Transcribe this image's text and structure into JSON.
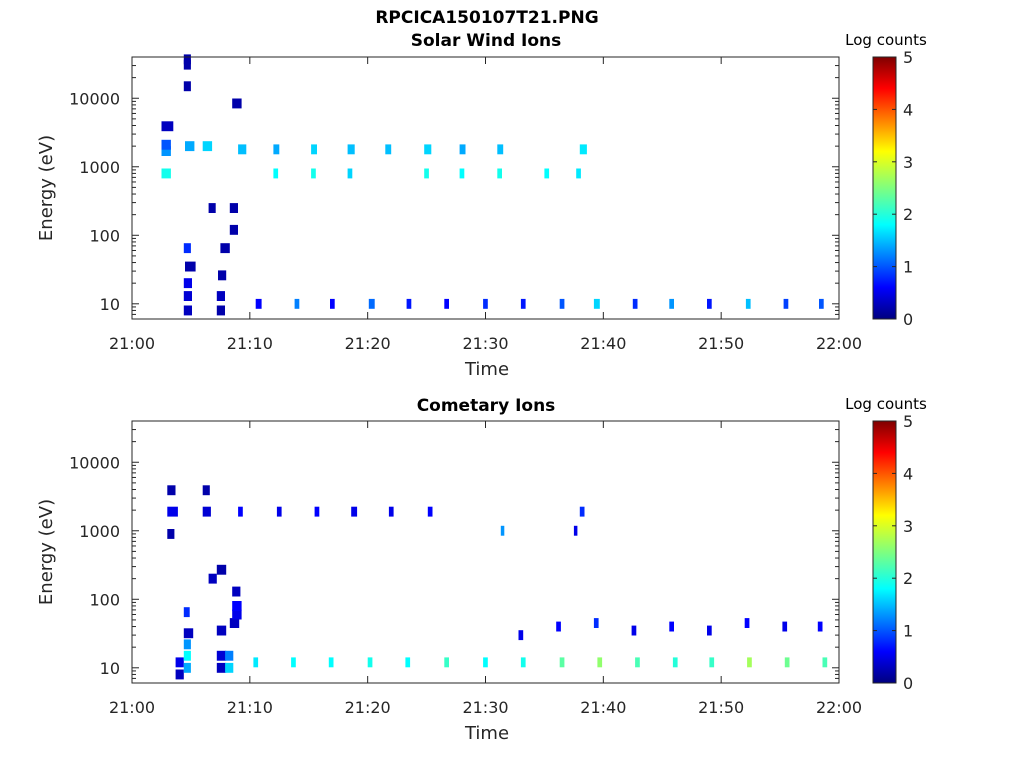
{
  "figure": {
    "title": "RPCICA150107T21.PNG"
  },
  "chart_data": [
    {
      "type": "heatmap",
      "title": "Solar Wind Ions",
      "xlabel": "Time",
      "ylabel": "Energy (eV)",
      "x_ticks": [
        "21:00",
        "21:10",
        "21:20",
        "21:30",
        "21:40",
        "21:50",
        "22:00"
      ],
      "x_range_minutes": [
        0,
        60
      ],
      "y_scale": "log",
      "y_ticks": [
        "10",
        "100",
        "1000",
        "10000"
      ],
      "y_range": [
        6,
        40000
      ],
      "colorbar": {
        "label": "Log counts",
        "ticks": [
          "0",
          "1",
          "2",
          "3",
          "4",
          "5"
        ],
        "range": [
          0,
          5
        ],
        "colormap": "jet"
      },
      "grid": false,
      "cells": [
        {
          "t": 4.4,
          "e": 8,
          "v": 0.3,
          "dt": 0.7
        },
        {
          "t": 4.4,
          "e": 13,
          "v": 0.4,
          "dt": 0.7
        },
        {
          "t": 4.4,
          "e": 20,
          "v": 0.5,
          "dt": 0.7
        },
        {
          "t": 4.5,
          "e": 35,
          "v": 0.2,
          "dt": 0.9
        },
        {
          "t": 4.4,
          "e": 65,
          "v": 0.8,
          "dt": 0.6
        },
        {
          "t": 4.4,
          "e": 15000,
          "v": 0.2,
          "dt": 0.6
        },
        {
          "t": 4.4,
          "e": 31000,
          "v": 0.2,
          "dt": 0.6
        },
        {
          "t": 4.4,
          "e": 37000,
          "v": 0.2,
          "dt": 0.6
        },
        {
          "t": 2.5,
          "e": 800,
          "v": 1.9,
          "dt": 0.8
        },
        {
          "t": 2.5,
          "e": 1700,
          "v": 1.3,
          "dt": 0.8
        },
        {
          "t": 2.5,
          "e": 2100,
          "v": 1.0,
          "dt": 0.8
        },
        {
          "t": 2.5,
          "e": 3900,
          "v": 0.3,
          "dt": 1.0
        },
        {
          "t": 4.5,
          "e": 2000,
          "v": 1.4,
          "dt": 0.8
        },
        {
          "t": 6.0,
          "e": 2000,
          "v": 1.6,
          "dt": 0.8
        },
        {
          "t": 7.2,
          "e": 8,
          "v": 0.2,
          "dt": 0.7
        },
        {
          "t": 7.2,
          "e": 13,
          "v": 0.3,
          "dt": 0.7
        },
        {
          "t": 7.3,
          "e": 26,
          "v": 0.2,
          "dt": 0.7
        },
        {
          "t": 6.5,
          "e": 250,
          "v": 0.2,
          "dt": 0.6
        },
        {
          "t": 7.5,
          "e": 65,
          "v": 0.2,
          "dt": 0.8
        },
        {
          "t": 8.3,
          "e": 120,
          "v": 0.2,
          "dt": 0.7
        },
        {
          "t": 8.3,
          "e": 250,
          "v": 0.2,
          "dt": 0.7
        },
        {
          "t": 8.5,
          "e": 8400,
          "v": 0.2,
          "dt": 0.8
        },
        {
          "t": 9.0,
          "e": 1800,
          "v": 1.5,
          "dt": 0.7
        },
        {
          "t": 12.0,
          "e": 1800,
          "v": 1.4,
          "dt": 0.5
        },
        {
          "t": 15.2,
          "e": 1800,
          "v": 1.6,
          "dt": 0.5
        },
        {
          "t": 18.3,
          "e": 1800,
          "v": 1.5,
          "dt": 0.6
        },
        {
          "t": 21.5,
          "e": 1800,
          "v": 1.5,
          "dt": 0.5
        },
        {
          "t": 24.8,
          "e": 1800,
          "v": 1.6,
          "dt": 0.6
        },
        {
          "t": 27.8,
          "e": 1800,
          "v": 1.4,
          "dt": 0.5
        },
        {
          "t": 31.0,
          "e": 1800,
          "v": 1.5,
          "dt": 0.5
        },
        {
          "t": 38.0,
          "e": 1800,
          "v": 1.7,
          "dt": 0.6
        },
        {
          "t": 12.0,
          "e": 800,
          "v": 1.8,
          "dt": 0.4
        },
        {
          "t": 15.2,
          "e": 800,
          "v": 1.9,
          "dt": 0.4
        },
        {
          "t": 18.3,
          "e": 800,
          "v": 1.6,
          "dt": 0.4
        },
        {
          "t": 24.8,
          "e": 800,
          "v": 1.9,
          "dt": 0.4
        },
        {
          "t": 27.8,
          "e": 800,
          "v": 1.8,
          "dt": 0.4
        },
        {
          "t": 31.0,
          "e": 800,
          "v": 1.9,
          "dt": 0.4
        },
        {
          "t": 35.0,
          "e": 800,
          "v": 1.8,
          "dt": 0.4
        },
        {
          "t": 37.7,
          "e": 800,
          "v": 1.7,
          "dt": 0.4
        },
        {
          "t": 10.5,
          "e": 10,
          "v": 0.6,
          "dt": 0.5
        },
        {
          "t": 13.8,
          "e": 10,
          "v": 1.2,
          "dt": 0.4
        },
        {
          "t": 16.8,
          "e": 10,
          "v": 0.6,
          "dt": 0.4
        },
        {
          "t": 20.1,
          "e": 10,
          "v": 1.1,
          "dt": 0.5
        },
        {
          "t": 23.3,
          "e": 10,
          "v": 0.7,
          "dt": 0.4
        },
        {
          "t": 26.5,
          "e": 10,
          "v": 0.6,
          "dt": 0.4
        },
        {
          "t": 29.8,
          "e": 10,
          "v": 0.8,
          "dt": 0.4
        },
        {
          "t": 33.0,
          "e": 10,
          "v": 0.7,
          "dt": 0.4
        },
        {
          "t": 36.3,
          "e": 10,
          "v": 1.0,
          "dt": 0.4
        },
        {
          "t": 39.2,
          "e": 10,
          "v": 1.6,
          "dt": 0.5
        },
        {
          "t": 42.5,
          "e": 10,
          "v": 0.8,
          "dt": 0.4
        },
        {
          "t": 45.6,
          "e": 10,
          "v": 1.3,
          "dt": 0.4
        },
        {
          "t": 48.8,
          "e": 10,
          "v": 0.7,
          "dt": 0.4
        },
        {
          "t": 52.1,
          "e": 10,
          "v": 1.5,
          "dt": 0.4
        },
        {
          "t": 55.3,
          "e": 10,
          "v": 0.9,
          "dt": 0.4
        },
        {
          "t": 58.3,
          "e": 10,
          "v": 1.0,
          "dt": 0.4
        }
      ]
    },
    {
      "type": "heatmap",
      "title": "Cometary Ions",
      "xlabel": "Time",
      "ylabel": "Energy (eV)",
      "x_ticks": [
        "21:00",
        "21:10",
        "21:20",
        "21:30",
        "21:40",
        "21:50",
        "22:00"
      ],
      "x_range_minutes": [
        0,
        60
      ],
      "y_scale": "log",
      "y_ticks": [
        "10",
        "100",
        "1000",
        "10000"
      ],
      "y_range": [
        6,
        40000
      ],
      "colorbar": {
        "label": "Log counts",
        "ticks": [
          "0",
          "1",
          "2",
          "3",
          "4",
          "5"
        ],
        "range": [
          0,
          5
        ],
        "colormap": "jet"
      },
      "grid": false,
      "cells": [
        {
          "t": 3.7,
          "e": 8,
          "v": 0.3,
          "dt": 0.7
        },
        {
          "t": 3.7,
          "e": 12,
          "v": 0.5,
          "dt": 0.7
        },
        {
          "t": 4.4,
          "e": 10,
          "v": 1.4,
          "dt": 0.6
        },
        {
          "t": 4.4,
          "e": 15,
          "v": 1.8,
          "dt": 0.6
        },
        {
          "t": 4.4,
          "e": 22,
          "v": 1.3,
          "dt": 0.6
        },
        {
          "t": 4.4,
          "e": 32,
          "v": 0.3,
          "dt": 0.8
        },
        {
          "t": 4.4,
          "e": 65,
          "v": 0.8,
          "dt": 0.5
        },
        {
          "t": 3.0,
          "e": 1900,
          "v": 0.5,
          "dt": 0.9
        },
        {
          "t": 3.0,
          "e": 3900,
          "v": 0.2,
          "dt": 0.7
        },
        {
          "t": 3.0,
          "e": 900,
          "v": 0.2,
          "dt": 0.6
        },
        {
          "t": 6.0,
          "e": 1900,
          "v": 0.4,
          "dt": 0.7
        },
        {
          "t": 6.0,
          "e": 3900,
          "v": 0.2,
          "dt": 0.6
        },
        {
          "t": 7.2,
          "e": 10,
          "v": 0.3,
          "dt": 0.8
        },
        {
          "t": 7.2,
          "e": 15,
          "v": 0.4,
          "dt": 0.8
        },
        {
          "t": 7.9,
          "e": 10,
          "v": 1.6,
          "dt": 0.7
        },
        {
          "t": 7.9,
          "e": 15,
          "v": 1.2,
          "dt": 0.7
        },
        {
          "t": 7.2,
          "e": 35,
          "v": 0.3,
          "dt": 0.8
        },
        {
          "t": 6.5,
          "e": 200,
          "v": 0.3,
          "dt": 0.7
        },
        {
          "t": 7.2,
          "e": 270,
          "v": 0.2,
          "dt": 0.8
        },
        {
          "t": 8.3,
          "e": 45,
          "v": 0.3,
          "dt": 0.8
        },
        {
          "t": 8.5,
          "e": 60,
          "v": 0.5,
          "dt": 0.8
        },
        {
          "t": 8.5,
          "e": 80,
          "v": 0.6,
          "dt": 0.8
        },
        {
          "t": 8.5,
          "e": 130,
          "v": 0.3,
          "dt": 0.7
        },
        {
          "t": 10.3,
          "e": 12,
          "v": 1.7,
          "dt": 0.4
        },
        {
          "t": 13.5,
          "e": 12,
          "v": 1.8,
          "dt": 0.4
        },
        {
          "t": 16.7,
          "e": 12,
          "v": 1.8,
          "dt": 0.4
        },
        {
          "t": 20.0,
          "e": 12,
          "v": 1.9,
          "dt": 0.4
        },
        {
          "t": 23.2,
          "e": 12,
          "v": 1.8,
          "dt": 0.4
        },
        {
          "t": 26.5,
          "e": 12,
          "v": 2.1,
          "dt": 0.4
        },
        {
          "t": 29.8,
          "e": 12,
          "v": 1.8,
          "dt": 0.4
        },
        {
          "t": 33.0,
          "e": 12,
          "v": 1.9,
          "dt": 0.4
        },
        {
          "t": 36.3,
          "e": 12,
          "v": 2.3,
          "dt": 0.4
        },
        {
          "t": 39.5,
          "e": 12,
          "v": 2.6,
          "dt": 0.4
        },
        {
          "t": 42.7,
          "e": 12,
          "v": 2.2,
          "dt": 0.4
        },
        {
          "t": 45.9,
          "e": 12,
          "v": 2.0,
          "dt": 0.4
        },
        {
          "t": 49.0,
          "e": 12,
          "v": 2.1,
          "dt": 0.4
        },
        {
          "t": 52.2,
          "e": 12,
          "v": 2.7,
          "dt": 0.4
        },
        {
          "t": 55.4,
          "e": 12,
          "v": 2.4,
          "dt": 0.4
        },
        {
          "t": 58.6,
          "e": 12,
          "v": 2.2,
          "dt": 0.4
        },
        {
          "t": 32.8,
          "e": 30,
          "v": 0.5,
          "dt": 0.4
        },
        {
          "t": 36.0,
          "e": 40,
          "v": 0.6,
          "dt": 0.4
        },
        {
          "t": 39.2,
          "e": 45,
          "v": 0.8,
          "dt": 0.4
        },
        {
          "t": 42.4,
          "e": 35,
          "v": 0.5,
          "dt": 0.4
        },
        {
          "t": 45.6,
          "e": 40,
          "v": 0.6,
          "dt": 0.4
        },
        {
          "t": 48.8,
          "e": 35,
          "v": 0.5,
          "dt": 0.4
        },
        {
          "t": 52.0,
          "e": 45,
          "v": 0.6,
          "dt": 0.4
        },
        {
          "t": 55.2,
          "e": 40,
          "v": 0.5,
          "dt": 0.4
        },
        {
          "t": 58.2,
          "e": 40,
          "v": 0.6,
          "dt": 0.4
        },
        {
          "t": 9.0,
          "e": 1900,
          "v": 0.6,
          "dt": 0.4
        },
        {
          "t": 12.3,
          "e": 1900,
          "v": 0.5,
          "dt": 0.4
        },
        {
          "t": 15.5,
          "e": 1900,
          "v": 0.6,
          "dt": 0.4
        },
        {
          "t": 18.6,
          "e": 1900,
          "v": 0.5,
          "dt": 0.5
        },
        {
          "t": 21.8,
          "e": 1900,
          "v": 0.5,
          "dt": 0.4
        },
        {
          "t": 25.1,
          "e": 1900,
          "v": 0.6,
          "dt": 0.4
        },
        {
          "t": 38.0,
          "e": 1900,
          "v": 0.8,
          "dt": 0.4
        },
        {
          "t": 31.3,
          "e": 1000,
          "v": 1.3,
          "dt": 0.3
        },
        {
          "t": 37.5,
          "e": 1000,
          "v": 0.5,
          "dt": 0.3
        }
      ]
    }
  ]
}
